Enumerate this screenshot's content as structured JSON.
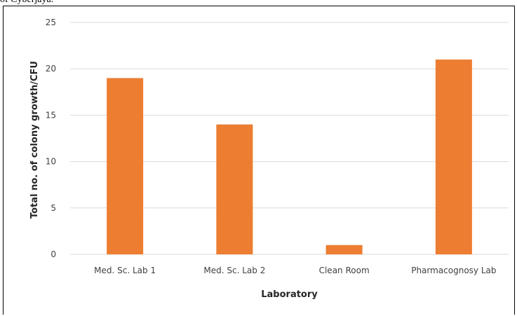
{
  "caption_fragment": "of Cyberjaya.",
  "chart_data": {
    "type": "bar",
    "categories": [
      "Med. Sc. Lab 1",
      "Med. Sc. Lab 2",
      "Clean Room",
      "Pharmacognosy Lab"
    ],
    "series": [
      {
        "values": [
          19,
          14,
          1,
          21
        ]
      }
    ],
    "xlabel": "Laboratory",
    "ylabel": "Total no. of colony growth/CFU",
    "ylim": [
      0,
      25
    ],
    "yticks": [
      "0",
      "5",
      "10",
      "15",
      "20",
      "25"
    ],
    "grid": true,
    "legend": "none",
    "bar_color": "#ED7D31",
    "grid_color": "#D9D9D9"
  }
}
